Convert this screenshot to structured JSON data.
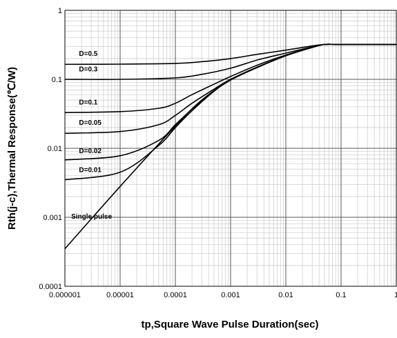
{
  "chart_data": {
    "type": "line",
    "x_scale": "log",
    "y_scale": "log",
    "xlim": [
      1e-06,
      1
    ],
    "ylim": [
      0.0001,
      1
    ],
    "xlabel": "tp,Square Wave Pulse Duration(sec)",
    "ylabel": "Rth(j-c),Thermal Response(℃/W)",
    "x_tick_labels": [
      "0.000001",
      "0.00001",
      "0.0001",
      "0.001",
      "0.01",
      "0.1",
      "1"
    ],
    "x_tick_values": [
      1e-06,
      1e-05,
      0.0001,
      0.001,
      0.01,
      0.1,
      1
    ],
    "y_tick_labels": [
      "0.0001",
      "0.001",
      "0.01",
      "0.1",
      "1"
    ],
    "y_tick_values": [
      0.0001,
      0.001,
      0.01,
      0.1,
      1
    ],
    "grid": "major and minor",
    "series": [
      {
        "name": "D=0.5",
        "x": [
          1e-06,
          1e-05,
          0.0001,
          0.0003,
          0.001,
          0.003,
          0.01,
          0.03,
          0.05,
          0.1,
          1
        ],
        "y": [
          0.165,
          0.166,
          0.17,
          0.18,
          0.2,
          0.23,
          0.265,
          0.305,
          0.32,
          0.32,
          0.32
        ]
      },
      {
        "name": "D=0.3",
        "x": [
          1e-06,
          1e-05,
          0.0001,
          0.0003,
          0.001,
          0.003,
          0.01,
          0.03,
          0.05,
          0.1,
          1
        ],
        "y": [
          0.1,
          0.1,
          0.105,
          0.118,
          0.145,
          0.19,
          0.24,
          0.295,
          0.32,
          0.32,
          0.32
        ]
      },
      {
        "name": "D=0.1",
        "x": [
          1e-06,
          1e-05,
          5e-05,
          0.0001,
          0.0002,
          0.0005,
          0.001,
          0.003,
          0.01,
          0.03,
          0.05,
          0.1,
          1
        ],
        "y": [
          0.033,
          0.034,
          0.038,
          0.045,
          0.06,
          0.085,
          0.11,
          0.16,
          0.225,
          0.29,
          0.32,
          0.32,
          0.32
        ]
      },
      {
        "name": "D=0.05",
        "x": [
          1e-06,
          1e-05,
          5e-05,
          0.0001,
          0.0002,
          0.0005,
          0.001,
          0.003,
          0.01,
          0.03,
          0.05,
          0.1,
          1
        ],
        "y": [
          0.0165,
          0.0175,
          0.022,
          0.03,
          0.045,
          0.072,
          0.1,
          0.15,
          0.22,
          0.29,
          0.32,
          0.32,
          0.32
        ]
      },
      {
        "name": "D=0.02",
        "x": [
          1e-06,
          1e-05,
          5e-05,
          0.0001,
          0.0002,
          0.0005,
          0.001,
          0.003,
          0.01,
          0.03,
          0.05,
          0.1,
          1
        ],
        "y": [
          0.0068,
          0.0078,
          0.013,
          0.022,
          0.037,
          0.068,
          0.098,
          0.148,
          0.22,
          0.29,
          0.32,
          0.32,
          0.32
        ]
      },
      {
        "name": "D=0.01",
        "x": [
          1e-06,
          1e-05,
          5e-05,
          0.0001,
          0.0002,
          0.0005,
          0.001,
          0.003,
          0.01,
          0.03,
          0.05,
          0.1,
          1
        ],
        "y": [
          0.0035,
          0.0045,
          0.011,
          0.02,
          0.035,
          0.067,
          0.098,
          0.148,
          0.22,
          0.29,
          0.32,
          0.32,
          0.32
        ]
      },
      {
        "name": "Single pulse",
        "x": [
          1e-06,
          1e-05,
          0.0001,
          0.0003,
          0.001,
          0.003,
          0.01,
          0.03,
          0.05,
          0.1,
          1
        ],
        "y": [
          0.00035,
          0.0028,
          0.021,
          0.05,
          0.098,
          0.148,
          0.22,
          0.29,
          0.32,
          0.32,
          0.32
        ]
      }
    ],
    "curve_labels": [
      {
        "text": "D=0.5",
        "x": 1.8e-06,
        "y": 0.22
      },
      {
        "text": "D=0.3",
        "x": 1.8e-06,
        "y": 0.13
      },
      {
        "text": "D=0.1",
        "x": 1.8e-06,
        "y": 0.043
      },
      {
        "text": "D=0.05",
        "x": 1.8e-06,
        "y": 0.022
      },
      {
        "text": "D=0.02",
        "x": 1.8e-06,
        "y": 0.0085
      },
      {
        "text": "D=0.01",
        "x": 1.8e-06,
        "y": 0.0045
      },
      {
        "text": "Single pulse",
        "x": 1.3e-06,
        "y": 0.00095
      }
    ]
  }
}
